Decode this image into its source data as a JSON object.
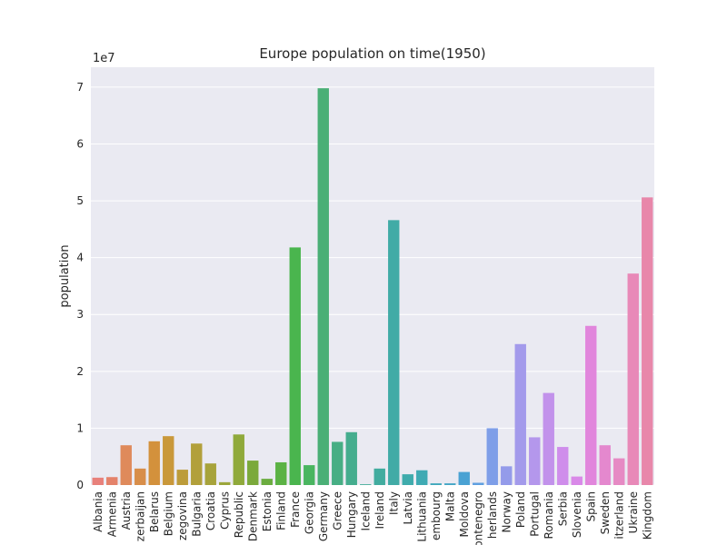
{
  "chart_data": {
    "type": "bar",
    "title": "Europe population on time(1950)",
    "xlabel": "",
    "ylabel": "population",
    "offset_label": "1e7",
    "ylim": [
      0,
      73500000
    ],
    "yticks": [
      0,
      10000000,
      20000000,
      30000000,
      40000000,
      50000000,
      60000000,
      70000000
    ],
    "ytick_labels": [
      "0",
      "1",
      "2",
      "3",
      "4",
      "5",
      "6",
      "7"
    ],
    "grid": true,
    "categories": [
      "Albania",
      "Armenia",
      "Austria",
      "Azerbaijan",
      "Belarus",
      "Belgium",
      "Bosnia and Herzegovina",
      "Bulgaria",
      "Croatia",
      "Cyprus",
      "Czech Republic",
      "Denmark",
      "Estonia",
      "Finland",
      "France",
      "Georgia",
      "Germany",
      "Greece",
      "Hungary",
      "Iceland",
      "Ireland",
      "Italy",
      "Latvia",
      "Lithuania",
      "Luxembourg",
      "Malta",
      "Moldova",
      "Montenegro",
      "Netherlands",
      "Norway",
      "Poland",
      "Portugal",
      "Romania",
      "Serbia",
      "Slovenia",
      "Spain",
      "Sweden",
      "Switzerland",
      "Ukraine",
      "United Kingdom"
    ],
    "tick_labels": [
      "Albania",
      "Armenia",
      "Austria",
      "zerbaijan",
      "Belarus",
      "Belgium",
      "zegovina",
      "Bulgaria",
      "Croatia",
      "Cyprus",
      "Republic",
      "Denmark",
      "Estonia",
      "Finland",
      "France",
      "Georgia",
      "Germany",
      "Greece",
      "Hungary",
      "Iceland",
      "Ireland",
      "Italy",
      "Latvia",
      "Lithuania",
      "embourg",
      "Malta",
      "Moldova",
      "ontenegro",
      "herlands",
      "Norway",
      "Poland",
      "Portugal",
      "Romania",
      "Serbia",
      "Slovenia",
      "Spain",
      "Sweden",
      "itzerland",
      "Ukraine",
      "Kingdom"
    ],
    "values": [
      1300000,
      1400000,
      7000000,
      2900000,
      7700000,
      8600000,
      2700000,
      7300000,
      3800000,
      500000,
      8900000,
      4300000,
      1100000,
      4000000,
      41800000,
      3500000,
      69800000,
      7600000,
      9300000,
      140000,
      2900000,
      46600000,
      1900000,
      2600000,
      300000,
      300000,
      2300000,
      400000,
      10000000,
      3300000,
      24800000,
      8400000,
      16200000,
      6700000,
      1500000,
      28000000,
      7000000,
      4700000,
      37200000,
      50600000
    ],
    "colors": [
      "#e8817b",
      "#e4826a",
      "#df8a5b",
      "#d88e4a",
      "#d3913c",
      "#c9983a",
      "#bc9c3a",
      "#b2a03b",
      "#a7a33b",
      "#9ca63b",
      "#8fa93b",
      "#7ba93b",
      "#6bac3f",
      "#5bb244",
      "#4ab54e",
      "#4ab560",
      "#4aaf76",
      "#47ae84",
      "#45ad8e",
      "#44ad99",
      "#42ac9f",
      "#41aba6",
      "#3fabac",
      "#3faab3",
      "#40a8bc",
      "#43a6c6",
      "#4aa2d3",
      "#5f9fe0",
      "#7e9ee8",
      "#949bea",
      "#a39aeb",
      "#b497ec",
      "#c292eb",
      "#cf8deb",
      "#d989e8",
      "#e186dc",
      "#e488ce",
      "#e68ac4",
      "#e889b8",
      "#e887aa"
    ]
  }
}
